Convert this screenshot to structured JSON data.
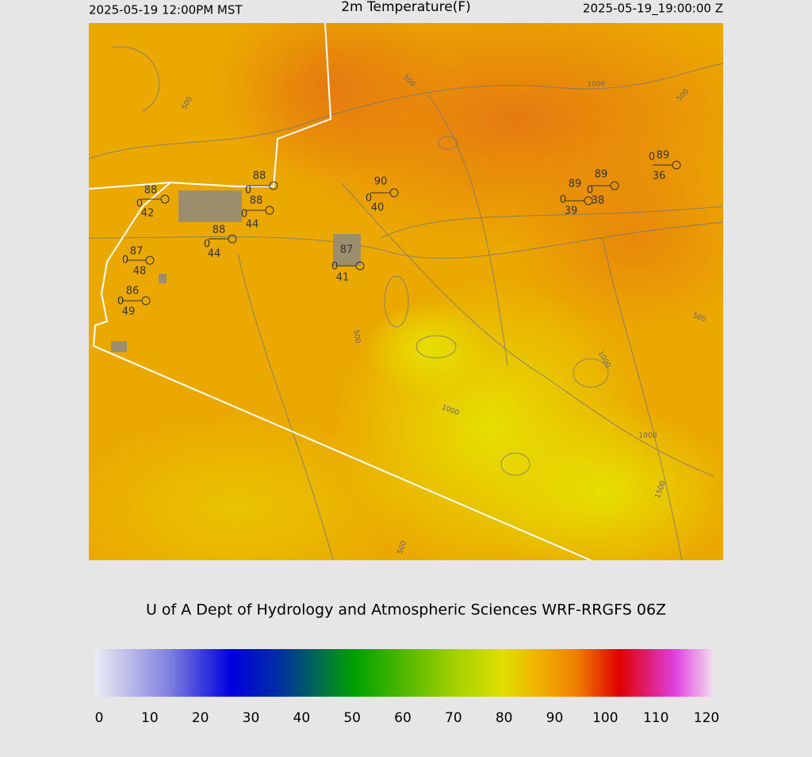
{
  "header": {
    "left": "2025-05-19 12:00PM MST",
    "title": "2m Temperature(F)",
    "right": "2025-05-19_19:00:00 Z"
  },
  "stations": [
    {
      "temperature": 88,
      "wind": 0,
      "dewpoint": 42
    },
    {
      "temperature": 88,
      "wind": 0
    },
    {
      "temperature": 88,
      "wind": 0,
      "dewpoint": 44
    },
    {
      "temperature": 88,
      "wind": 0,
      "dewpoint": 44
    },
    {
      "temperature": 87,
      "wind": 0,
      "dewpoint": 48
    },
    {
      "temperature": 86,
      "wind": 0,
      "dewpoint": 49
    },
    {
      "temperature": 90,
      "wind": 0,
      "dewpoint": 40
    },
    {
      "temperature": 87,
      "wind": 0,
      "dewpoint": 41
    },
    {
      "temperature": 89,
      "wind": 0,
      "dewpoint": 39
    },
    {
      "temperature": 89,
      "wind": 0,
      "dewpoint": 38
    },
    {
      "temperature": 89,
      "wind": 0,
      "dewpoint": 36
    }
  ],
  "contour_labels": [
    500,
    500,
    1000,
    500,
    500,
    1000,
    1000,
    1000,
    1500,
    500,
    500
  ],
  "footer": "U of A Dept of Hydrology and Atmospheric Sciences WRF-RRGFS 06Z",
  "colorbar": {
    "ticks": [
      0,
      10,
      20,
      30,
      40,
      50,
      60,
      70,
      80,
      90,
      100,
      110,
      120
    ]
  }
}
